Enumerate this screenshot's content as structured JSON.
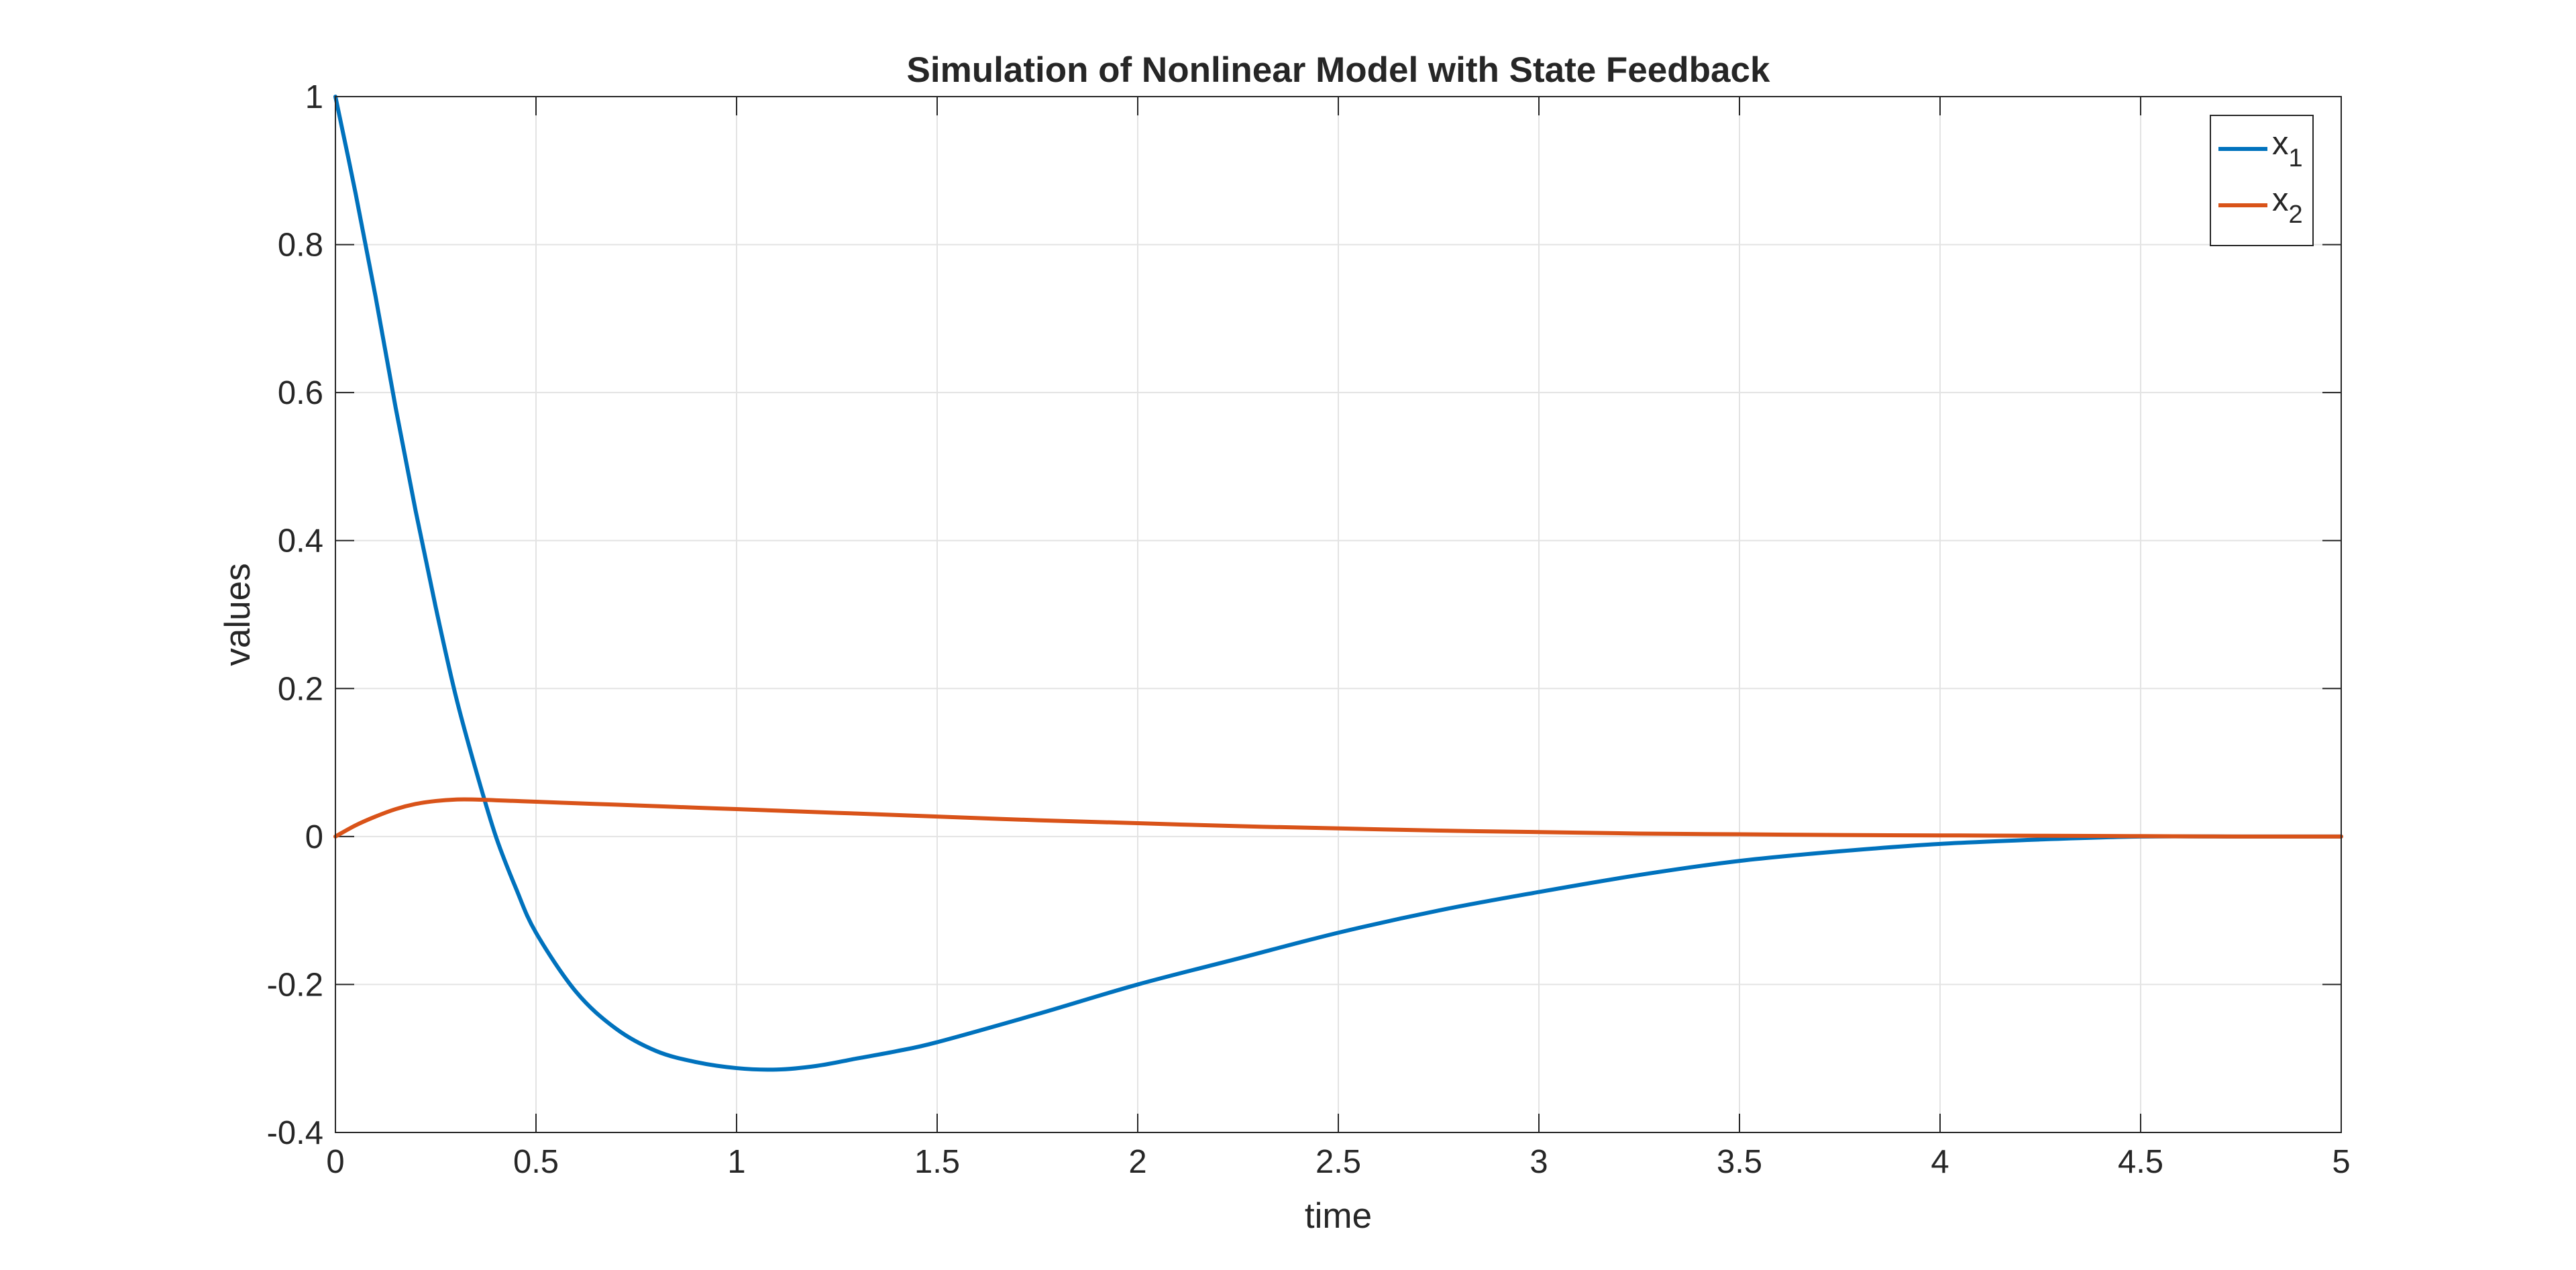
{
  "chart_data": {
    "type": "line",
    "title": "Simulation of Nonlinear Model with State Feedback",
    "xlabel": "time",
    "ylabel": "values",
    "xlim": [
      0,
      5
    ],
    "ylim": [
      -0.4,
      1
    ],
    "grid": true,
    "legend_position": "top-right",
    "x_ticks": [
      "0",
      "0.5",
      "1",
      "1.5",
      "2",
      "2.5",
      "3",
      "3.5",
      "4",
      "4.5",
      "5"
    ],
    "y_ticks": [
      "-0.4",
      "-0.2",
      "0",
      "0.2",
      "0.4",
      "0.6",
      "0.8",
      "1"
    ],
    "x": [
      0,
      0.05,
      0.1,
      0.15,
      0.2,
      0.25,
      0.3,
      0.35,
      0.4,
      0.45,
      0.5,
      0.6,
      0.7,
      0.8,
      0.9,
      1.0,
      1.1,
      1.2,
      1.3,
      1.4,
      1.5,
      1.75,
      2.0,
      2.25,
      2.5,
      2.75,
      3.0,
      3.25,
      3.5,
      3.75,
      4.0,
      4.25,
      4.5,
      4.75,
      5.0
    ],
    "series": [
      {
        "name": "x",
        "subscript": "1",
        "color": "#0072BD",
        "values": [
          1.0,
          0.87,
          0.73,
          0.58,
          0.44,
          0.31,
          0.19,
          0.09,
          0.0,
          -0.07,
          -0.13,
          -0.21,
          -0.26,
          -0.29,
          -0.305,
          -0.313,
          -0.315,
          -0.31,
          -0.3,
          -0.29,
          -0.278,
          -0.24,
          -0.2,
          -0.165,
          -0.13,
          -0.1,
          -0.075,
          -0.052,
          -0.033,
          -0.02,
          -0.01,
          -0.004,
          0.0,
          0.0,
          0.0
        ]
      },
      {
        "name": "x",
        "subscript": "2",
        "color": "#D95319",
        "values": [
          0.0,
          0.015,
          0.027,
          0.037,
          0.044,
          0.048,
          0.05,
          0.05,
          0.049,
          0.048,
          0.047,
          0.045,
          0.043,
          0.041,
          0.039,
          0.037,
          0.035,
          0.033,
          0.031,
          0.029,
          0.027,
          0.022,
          0.018,
          0.014,
          0.011,
          0.008,
          0.006,
          0.004,
          0.003,
          0.002,
          0.0015,
          0.001,
          0.0005,
          0.0,
          0.0
        ]
      }
    ]
  }
}
